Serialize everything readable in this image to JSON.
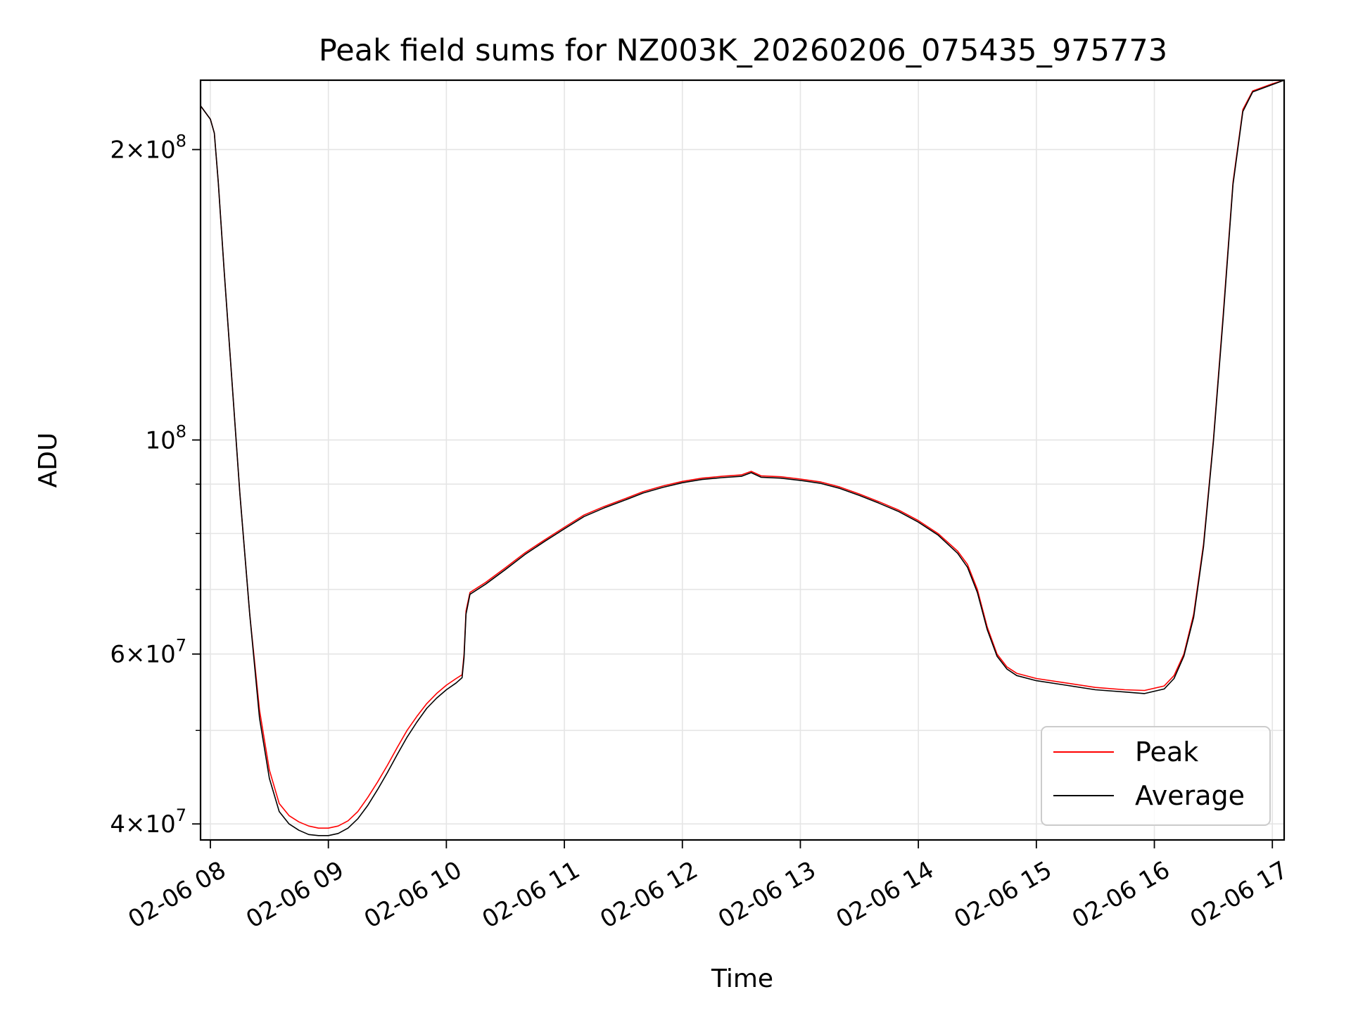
{
  "chart_data": {
    "type": "line",
    "title": "Peak field sums for NZ003K_20260206_075435_975773",
    "xlabel": "Time",
    "ylabel": "ADU",
    "yscale": "log",
    "ylim": [
      38500000,
      236000000
    ],
    "xlim": [
      "2026-02-06 07:55",
      "2026-02-06 17:06"
    ],
    "grid": true,
    "legend_position": "lower-right",
    "x_ticks": [
      {
        "value": "2026-02-06 08:00",
        "label": "02-06 08"
      },
      {
        "value": "2026-02-06 09:00",
        "label": "02-06 09"
      },
      {
        "value": "2026-02-06 10:00",
        "label": "02-06 10"
      },
      {
        "value": "2026-02-06 11:00",
        "label": "02-06 11"
      },
      {
        "value": "2026-02-06 12:00",
        "label": "02-06 12"
      },
      {
        "value": "2026-02-06 13:00",
        "label": "02-06 13"
      },
      {
        "value": "2026-02-06 14:00",
        "label": "02-06 14"
      },
      {
        "value": "2026-02-06 15:00",
        "label": "02-06 15"
      },
      {
        "value": "2026-02-06 16:00",
        "label": "02-06 16"
      },
      {
        "value": "2026-02-06 17:00",
        "label": "02-06 17"
      }
    ],
    "y_major_ticks": [
      {
        "value": 40000000,
        "base": "4×10",
        "exp": "7"
      },
      {
        "value": 60000000,
        "base": "6×10",
        "exp": "7"
      },
      {
        "value": 100000000,
        "base": "10",
        "exp": "8"
      },
      {
        "value": 200000000,
        "base": "2×10",
        "exp": "8"
      }
    ],
    "y_minor_ticks": [
      50000000,
      70000000,
      80000000,
      90000000
    ],
    "series": [
      {
        "name": "Peak",
        "color": "#ff0000",
        "points": [
          [
            "2026-02-06 07:55",
            222000000
          ],
          [
            "2026-02-06 08:00",
            215000000
          ],
          [
            "2026-02-06 08:02",
            208000000
          ],
          [
            "2026-02-06 08:04",
            185000000
          ],
          [
            "2026-02-06 08:07",
            150000000
          ],
          [
            "2026-02-06 08:11",
            115000000
          ],
          [
            "2026-02-06 08:15",
            88000000
          ],
          [
            "2026-02-06 08:20",
            66000000
          ],
          [
            "2026-02-06 08:25",
            52500000
          ],
          [
            "2026-02-06 08:30",
            45500000
          ],
          [
            "2026-02-06 08:35",
            42000000
          ],
          [
            "2026-02-06 08:40",
            40800000
          ],
          [
            "2026-02-06 08:45",
            40200000
          ],
          [
            "2026-02-06 08:50",
            39800000
          ],
          [
            "2026-02-06 08:55",
            39600000
          ],
          [
            "2026-02-06 09:00",
            39600000
          ],
          [
            "2026-02-06 09:05",
            39800000
          ],
          [
            "2026-02-06 09:10",
            40300000
          ],
          [
            "2026-02-06 09:15",
            41200000
          ],
          [
            "2026-02-06 09:20",
            42600000
          ],
          [
            "2026-02-06 09:25",
            44200000
          ],
          [
            "2026-02-06 09:30",
            46000000
          ],
          [
            "2026-02-06 09:35",
            48000000
          ],
          [
            "2026-02-06 09:40",
            50000000
          ],
          [
            "2026-02-06 09:45",
            51700000
          ],
          [
            "2026-02-06 09:50",
            53300000
          ],
          [
            "2026-02-06 09:55",
            54600000
          ],
          [
            "2026-02-06 10:00",
            55700000
          ],
          [
            "2026-02-06 10:05",
            56600000
          ],
          [
            "2026-02-06 10:08",
            57100000
          ],
          [
            "2026-02-06 10:09",
            60000000
          ],
          [
            "2026-02-06 10:10",
            66500000
          ],
          [
            "2026-02-06 10:12",
            69500000
          ],
          [
            "2026-02-06 10:20",
            71200000
          ],
          [
            "2026-02-06 10:30",
            73700000
          ],
          [
            "2026-02-06 10:40",
            76400000
          ],
          [
            "2026-02-06 10:50",
            78800000
          ],
          [
            "2026-02-06 11:00",
            81200000
          ],
          [
            "2026-02-06 11:10",
            83600000
          ],
          [
            "2026-02-06 11:20",
            85300000
          ],
          [
            "2026-02-06 11:30",
            86800000
          ],
          [
            "2026-02-06 11:40",
            88400000
          ],
          [
            "2026-02-06 11:50",
            89600000
          ],
          [
            "2026-02-06 12:00",
            90600000
          ],
          [
            "2026-02-06 12:10",
            91300000
          ],
          [
            "2026-02-06 12:20",
            91700000
          ],
          [
            "2026-02-06 12:30",
            92000000
          ],
          [
            "2026-02-06 12:35",
            92800000
          ],
          [
            "2026-02-06 12:40",
            91800000
          ],
          [
            "2026-02-06 12:50",
            91600000
          ],
          [
            "2026-02-06 13:00",
            91100000
          ],
          [
            "2026-02-06 13:10",
            90500000
          ],
          [
            "2026-02-06 13:20",
            89400000
          ],
          [
            "2026-02-06 13:30",
            87900000
          ],
          [
            "2026-02-06 13:40",
            86300000
          ],
          [
            "2026-02-06 13:50",
            84600000
          ],
          [
            "2026-02-06 14:00",
            82500000
          ],
          [
            "2026-02-06 14:10",
            80000000
          ],
          [
            "2026-02-06 14:20",
            76700000
          ],
          [
            "2026-02-06 14:25",
            74300000
          ],
          [
            "2026-02-06 14:30",
            70000000
          ],
          [
            "2026-02-06 14:35",
            64000000
          ],
          [
            "2026-02-06 14:40",
            60000000
          ],
          [
            "2026-02-06 14:45",
            58200000
          ],
          [
            "2026-02-06 14:50",
            57300000
          ],
          [
            "2026-02-06 15:00",
            56600000
          ],
          [
            "2026-02-06 15:15",
            56000000
          ],
          [
            "2026-02-06 15:30",
            55400000
          ],
          [
            "2026-02-06 15:45",
            55100000
          ],
          [
            "2026-02-06 15:55",
            55000000
          ],
          [
            "2026-02-06 16:05",
            55600000
          ],
          [
            "2026-02-06 16:10",
            57000000
          ],
          [
            "2026-02-06 16:15",
            60000000
          ],
          [
            "2026-02-06 16:20",
            66000000
          ],
          [
            "2026-02-06 16:25",
            78000000
          ],
          [
            "2026-02-06 16:30",
            100000000
          ],
          [
            "2026-02-06 16:35",
            135000000
          ],
          [
            "2026-02-06 16:40",
            185000000
          ],
          [
            "2026-02-06 16:45",
            220000000
          ],
          [
            "2026-02-06 16:50",
            230000000
          ],
          [
            "2026-02-06 17:00",
            234000000
          ],
          [
            "2026-02-06 17:06",
            236000000
          ]
        ]
      },
      {
        "name": "Average",
        "color": "#000000",
        "points": [
          [
            "2026-02-06 07:55",
            222000000
          ],
          [
            "2026-02-06 08:00",
            215000000
          ],
          [
            "2026-02-06 08:02",
            208000000
          ],
          [
            "2026-02-06 08:04",
            185000000
          ],
          [
            "2026-02-06 08:07",
            150000000
          ],
          [
            "2026-02-06 08:11",
            115000000
          ],
          [
            "2026-02-06 08:15",
            88000000
          ],
          [
            "2026-02-06 08:20",
            66000000
          ],
          [
            "2026-02-06 08:25",
            51500000
          ],
          [
            "2026-02-06 08:30",
            44600000
          ],
          [
            "2026-02-06 08:35",
            41200000
          ],
          [
            "2026-02-06 08:40",
            40000000
          ],
          [
            "2026-02-06 08:45",
            39400000
          ],
          [
            "2026-02-06 08:50",
            39000000
          ],
          [
            "2026-02-06 08:55",
            38900000
          ],
          [
            "2026-02-06 09:00",
            38900000
          ],
          [
            "2026-02-06 09:05",
            39100000
          ],
          [
            "2026-02-06 09:10",
            39600000
          ],
          [
            "2026-02-06 09:15",
            40500000
          ],
          [
            "2026-02-06 09:20",
            41800000
          ],
          [
            "2026-02-06 09:25",
            43400000
          ],
          [
            "2026-02-06 09:30",
            45200000
          ],
          [
            "2026-02-06 09:35",
            47200000
          ],
          [
            "2026-02-06 09:40",
            49200000
          ],
          [
            "2026-02-06 09:45",
            51000000
          ],
          [
            "2026-02-06 09:50",
            52700000
          ],
          [
            "2026-02-06 09:55",
            54000000
          ],
          [
            "2026-02-06 10:00",
            55100000
          ],
          [
            "2026-02-06 10:05",
            56000000
          ],
          [
            "2026-02-06 10:08",
            56700000
          ],
          [
            "2026-02-06 10:09",
            59500000
          ],
          [
            "2026-02-06 10:10",
            66000000
          ],
          [
            "2026-02-06 10:12",
            69200000
          ],
          [
            "2026-02-06 10:20",
            70900000
          ],
          [
            "2026-02-06 10:30",
            73400000
          ],
          [
            "2026-02-06 10:40",
            76100000
          ],
          [
            "2026-02-06 10:50",
            78500000
          ],
          [
            "2026-02-06 11:00",
            80900000
          ],
          [
            "2026-02-06 11:10",
            83300000
          ],
          [
            "2026-02-06 11:20",
            85000000
          ],
          [
            "2026-02-06 11:30",
            86500000
          ],
          [
            "2026-02-06 11:40",
            88100000
          ],
          [
            "2026-02-06 11:50",
            89300000
          ],
          [
            "2026-02-06 12:00",
            90300000
          ],
          [
            "2026-02-06 12:10",
            91000000
          ],
          [
            "2026-02-06 12:20",
            91400000
          ],
          [
            "2026-02-06 12:30",
            91700000
          ],
          [
            "2026-02-06 12:35",
            92500000
          ],
          [
            "2026-02-06 12:40",
            91500000
          ],
          [
            "2026-02-06 12:50",
            91300000
          ],
          [
            "2026-02-06 13:00",
            90800000
          ],
          [
            "2026-02-06 13:10",
            90200000
          ],
          [
            "2026-02-06 13:20",
            89100000
          ],
          [
            "2026-02-06 13:30",
            87600000
          ],
          [
            "2026-02-06 13:40",
            86000000
          ],
          [
            "2026-02-06 13:50",
            84300000
          ],
          [
            "2026-02-06 14:00",
            82200000
          ],
          [
            "2026-02-06 14:10",
            79700000
          ],
          [
            "2026-02-06 14:20",
            76300000
          ],
          [
            "2026-02-06 14:25",
            73800000
          ],
          [
            "2026-02-06 14:30",
            69500000
          ],
          [
            "2026-02-06 14:35",
            63600000
          ],
          [
            "2026-02-06 14:40",
            59700000
          ],
          [
            "2026-02-06 14:45",
            57900000
          ],
          [
            "2026-02-06 14:50",
            57000000
          ],
          [
            "2026-02-06 15:00",
            56300000
          ],
          [
            "2026-02-06 15:15",
            55700000
          ],
          [
            "2026-02-06 15:30",
            55100000
          ],
          [
            "2026-02-06 15:45",
            54800000
          ],
          [
            "2026-02-06 15:55",
            54600000
          ],
          [
            "2026-02-06 16:05",
            55200000
          ],
          [
            "2026-02-06 16:10",
            56600000
          ],
          [
            "2026-02-06 16:15",
            59700000
          ],
          [
            "2026-02-06 16:20",
            65500000
          ],
          [
            "2026-02-06 16:25",
            77500000
          ],
          [
            "2026-02-06 16:30",
            99500000
          ],
          [
            "2026-02-06 16:35",
            134000000
          ],
          [
            "2026-02-06 16:40",
            184000000
          ],
          [
            "2026-02-06 16:45",
            219000000
          ],
          [
            "2026-02-06 16:50",
            229500000
          ],
          [
            "2026-02-06 17:00",
            233500000
          ],
          [
            "2026-02-06 17:06",
            236000000
          ]
        ]
      }
    ]
  }
}
